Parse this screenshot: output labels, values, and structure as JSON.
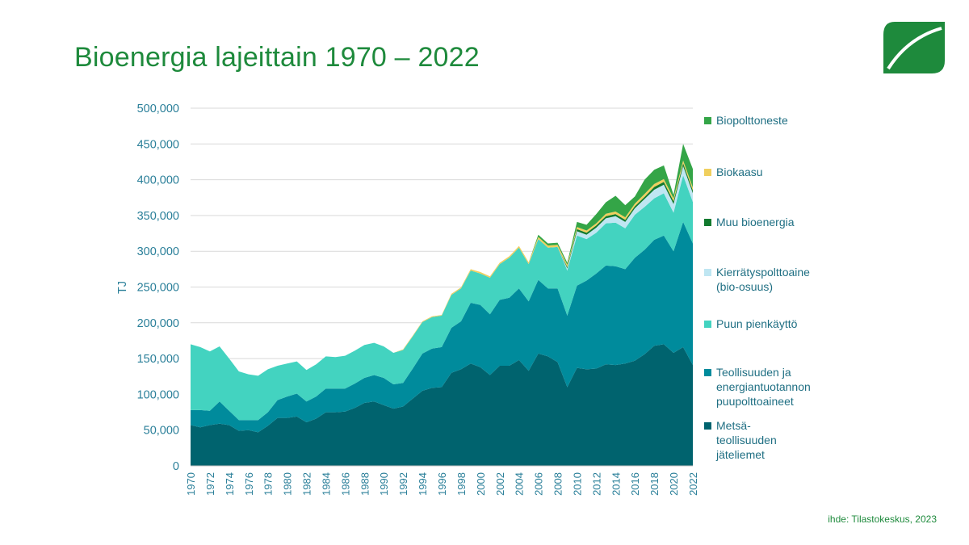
{
  "page": {
    "title": "Bioenergia lajeittain 1970 – 2022",
    "source": "ihde: Tilastokeskus, 2023"
  },
  "colors": {
    "title": "#1e8a3c",
    "axis_text": "#2a7f99",
    "grid": "#d9d9d9"
  },
  "chart_data": {
    "type": "area",
    "stacked": true,
    "ylabel": "TJ",
    "xlabel": "",
    "ylim": [
      0,
      500000
    ],
    "yticks": [
      "0",
      "50,000",
      "100,000",
      "150,000",
      "200,000",
      "250,000",
      "300,000",
      "350,000",
      "400,000",
      "450,000",
      "500,000"
    ],
    "ytick_values": [
      0,
      50000,
      100000,
      150000,
      200000,
      250000,
      300000,
      350000,
      400000,
      450000,
      500000
    ],
    "xticks": [
      "1970",
      "1972",
      "1974",
      "1976",
      "1978",
      "1980",
      "1982",
      "1984",
      "1986",
      "1988",
      "1990",
      "1992",
      "1994",
      "1996",
      "1998",
      "2000",
      "2002",
      "2004",
      "2006",
      "2008",
      "2010",
      "2012",
      "2014",
      "2016",
      "2018",
      "2020",
      "2022"
    ],
    "grid": true,
    "legend_position": "right",
    "x": [
      1970,
      1971,
      1972,
      1973,
      1974,
      1975,
      1976,
      1977,
      1978,
      1979,
      1980,
      1981,
      1982,
      1983,
      1984,
      1985,
      1986,
      1987,
      1988,
      1989,
      1990,
      1991,
      1992,
      1993,
      1994,
      1995,
      1996,
      1997,
      1998,
      1999,
      2000,
      2001,
      2002,
      2003,
      2004,
      2005,
      2006,
      2007,
      2008,
      2009,
      2010,
      2011,
      2012,
      2013,
      2014,
      2015,
      2016,
      2017,
      2018,
      2019,
      2020,
      2021,
      2022
    ],
    "series": [
      {
        "name": "Metsä-\nteollisuuden\njäteliemet",
        "color": "#00636e",
        "values": [
          57000,
          54000,
          57000,
          59000,
          57000,
          49000,
          50000,
          47000,
          56000,
          67000,
          67000,
          69000,
          61000,
          66000,
          75000,
          75000,
          76000,
          81000,
          88000,
          90000,
          85000,
          80000,
          83000,
          94000,
          105000,
          109000,
          110000,
          130000,
          135000,
          143000,
          138000,
          127000,
          140000,
          140000,
          148000,
          133000,
          157000,
          153000,
          145000,
          110000,
          137000,
          135000,
          136000,
          142000,
          141000,
          143000,
          147000,
          156000,
          168000,
          170000,
          158000,
          166000,
          141000
        ]
      },
      {
        "name": "Teollisuuden ja\nenergiantuotannon\npuupolttoaineet",
        "color": "#008b9c",
        "values": [
          21000,
          24000,
          20000,
          31000,
          20000,
          15000,
          14000,
          17000,
          19000,
          25000,
          30000,
          32000,
          29000,
          31000,
          33000,
          33000,
          32000,
          34000,
          35000,
          37000,
          38000,
          34000,
          33000,
          42000,
          52000,
          55000,
          56000,
          63000,
          67000,
          85000,
          87000,
          85000,
          92000,
          95000,
          100000,
          97000,
          103000,
          95000,
          103000,
          100000,
          115000,
          124000,
          133000,
          138000,
          138000,
          132000,
          144000,
          146000,
          148000,
          152000,
          142000,
          175000,
          170000
        ]
      },
      {
        "name": "Puun pienkäyttö",
        "color": "#43d3c0",
        "values": [
          92000,
          88000,
          83000,
          77000,
          73000,
          68000,
          64000,
          62000,
          60000,
          48000,
          46000,
          45000,
          44000,
          45000,
          45000,
          44000,
          46000,
          46000,
          46000,
          45000,
          44000,
          44000,
          46000,
          45000,
          44000,
          44000,
          44000,
          46000,
          46000,
          45000,
          44000,
          51000,
          50000,
          56000,
          57000,
          52000,
          57000,
          57000,
          58000,
          63000,
          70000,
          58000,
          57000,
          59000,
          61000,
          57000,
          60000,
          60000,
          58000,
          59000,
          54000,
          65000,
          58000
        ]
      },
      {
        "name": "Kierrätyspolttoaine\n(bio-osuus)",
        "color": "#bfe6f2",
        "values": [
          0,
          0,
          0,
          0,
          0,
          0,
          0,
          0,
          0,
          0,
          0,
          0,
          0,
          0,
          0,
          0,
          0,
          0,
          0,
          0,
          0,
          0,
          0,
          0,
          0,
          0,
          0,
          0,
          0,
          0,
          0,
          0,
          0,
          0,
          0,
          0,
          0,
          0,
          0,
          3000,
          6000,
          6000,
          7000,
          7000,
          9000,
          9000,
          9000,
          11000,
          12000,
          12000,
          12000,
          13000,
          12000
        ]
      },
      {
        "name": "Muu bioenergia",
        "color": "#127a2e",
        "values": [
          0,
          0,
          0,
          0,
          0,
          0,
          0,
          0,
          0,
          0,
          0,
          0,
          0,
          0,
          0,
          0,
          0,
          0,
          0,
          0,
          0,
          0,
          0,
          0,
          0,
          0,
          0,
          0,
          0,
          0,
          0,
          0,
          0,
          0,
          0,
          0,
          0,
          0,
          0,
          2000,
          3000,
          3000,
          3000,
          3000,
          3000,
          3000,
          3000,
          3000,
          4000,
          4000,
          4000,
          4000,
          4000
        ]
      },
      {
        "name": "Biokaasu",
        "color": "#f0cf5e",
        "values": [
          0,
          0,
          0,
          0,
          0,
          0,
          0,
          0,
          0,
          0,
          0,
          0,
          0,
          0,
          0,
          0,
          0,
          0,
          0,
          0,
          0,
          0,
          1000,
          1000,
          1000,
          1000,
          1000,
          1500,
          1500,
          2000,
          2000,
          2000,
          2000,
          2000,
          2500,
          2500,
          3000,
          3000,
          3000,
          3000,
          3000,
          3000,
          3000,
          3500,
          3500,
          3500,
          3500,
          4000,
          4000,
          4000,
          4000,
          4000,
          4000
        ]
      },
      {
        "name": "Biopolttoneste",
        "color": "#34a547",
        "values": [
          0,
          0,
          0,
          0,
          0,
          0,
          0,
          0,
          0,
          0,
          0,
          0,
          0,
          0,
          0,
          0,
          0,
          0,
          0,
          0,
          0,
          0,
          0,
          0,
          0,
          0,
          0,
          0,
          0,
          0,
          0,
          0,
          0,
          0,
          0,
          0,
          3000,
          3000,
          3000,
          3000,
          7000,
          8000,
          13000,
          16000,
          22000,
          17000,
          10000,
          20000,
          20000,
          19000,
          5000,
          23000,
          26000
        ]
      }
    ]
  }
}
